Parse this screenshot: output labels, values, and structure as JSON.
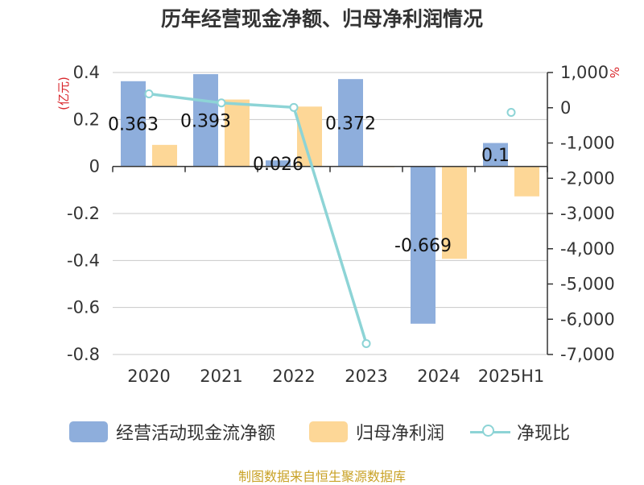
{
  "title": "历年经营现金净额、归母净利润情况",
  "source": "制图数据来自恒生聚源数据库",
  "colors": {
    "cash": "#8eaedc",
    "profit": "#fdd797",
    "ratio": "#8dd4d6",
    "grid": "#c8c8c8",
    "axis": "#333333",
    "unit": "#d9262b",
    "text": "#333333"
  },
  "chart_data": {
    "type": "bar",
    "title": "历年经营现金净额、归母净利润情况",
    "categories": [
      "2020",
      "2021",
      "2022",
      "2023",
      "2024",
      "2025H1"
    ],
    "y_left": {
      "unit_label": "(亿元)",
      "ylim": [
        -0.8,
        0.4
      ],
      "ticks": [
        0.4,
        0.2,
        0,
        -0.2,
        -0.4,
        -0.6,
        -0.8
      ],
      "tick_labels": [
        "0.4",
        "0.2",
        "0",
        "-0.2",
        "-0.4",
        "-0.6",
        "-0.8"
      ]
    },
    "y_right": {
      "unit_label": "%",
      "ylim": [
        -7000,
        1000
      ],
      "ticks": [
        1000,
        0,
        -1000,
        -2000,
        -3000,
        -4000,
        -5000,
        -6000,
        -7000
      ],
      "tick_labels": [
        "1,000",
        "0",
        "-1,000",
        "-2,000",
        "-3,000",
        "-4,000",
        "-5,000",
        "-6,000",
        "-7,000"
      ]
    },
    "series": [
      {
        "name": "经营活动现金流净额",
        "type": "bar",
        "axis": "left",
        "values": [
          0.363,
          0.393,
          0.026,
          0.372,
          -0.669,
          0.1
        ],
        "data_labels": [
          "0.363",
          "0.393",
          "0.026",
          "0.372",
          "-0.669",
          "0.1"
        ]
      },
      {
        "name": "归母净利润",
        "type": "bar",
        "axis": "left",
        "values": [
          0.092,
          0.285,
          0.255,
          -0.003,
          -0.393,
          -0.127
        ]
      },
      {
        "name": "净现比",
        "type": "line",
        "axis": "right",
        "values": [
          394,
          138,
          10,
          -6690,
          null,
          -131
        ]
      }
    ],
    "grid": true,
    "legend_position": "bottom"
  }
}
